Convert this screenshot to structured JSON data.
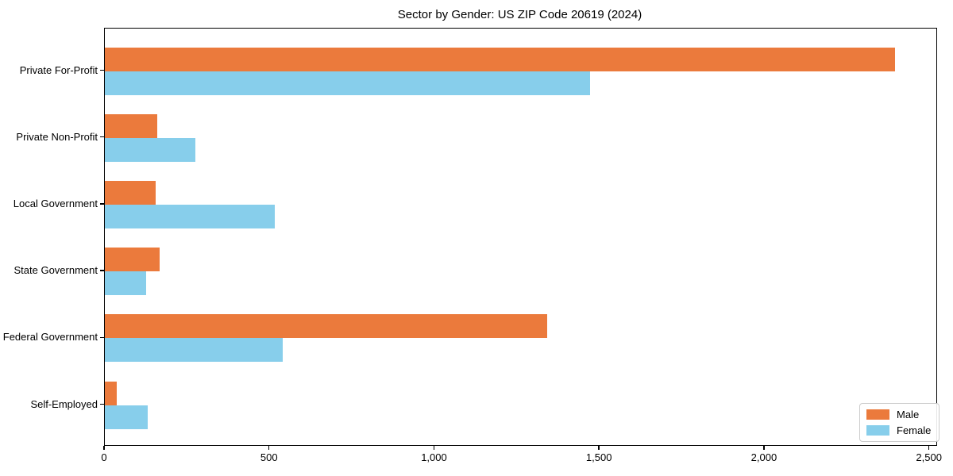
{
  "chart_data": {
    "type": "bar",
    "orientation": "horizontal",
    "title": "Sector by Gender: US ZIP Code 20619 (2024)",
    "categories": [
      "Private For-Profit",
      "Private Non-Profit",
      "Local Government",
      "State Government",
      "Federal Government",
      "Self-Employed"
    ],
    "series": [
      {
        "name": "Male",
        "color": "#EB7A3C",
        "values": [
          2395,
          160,
          155,
          165,
          1340,
          35
        ]
      },
      {
        "name": "Female",
        "color": "#87CEEB",
        "values": [
          1470,
          275,
          515,
          125,
          540,
          130
        ]
      }
    ],
    "xlabel": "",
    "ylabel": "",
    "xlim": [
      0,
      2520
    ],
    "xticks": [
      0,
      500,
      1000,
      1500,
      2000,
      2500
    ],
    "xtick_labels": [
      "0",
      "500",
      "1,000",
      "1,500",
      "2,000",
      "2,500"
    ],
    "grid": false,
    "legend": {
      "position": "lower-right",
      "entries": [
        "Male",
        "Female"
      ]
    },
    "colors": {
      "male": "#EB7A3C",
      "female": "#87CEEB",
      "spine": "#000000",
      "legend_border": "#CCCCCC",
      "text": "#000000"
    }
  }
}
